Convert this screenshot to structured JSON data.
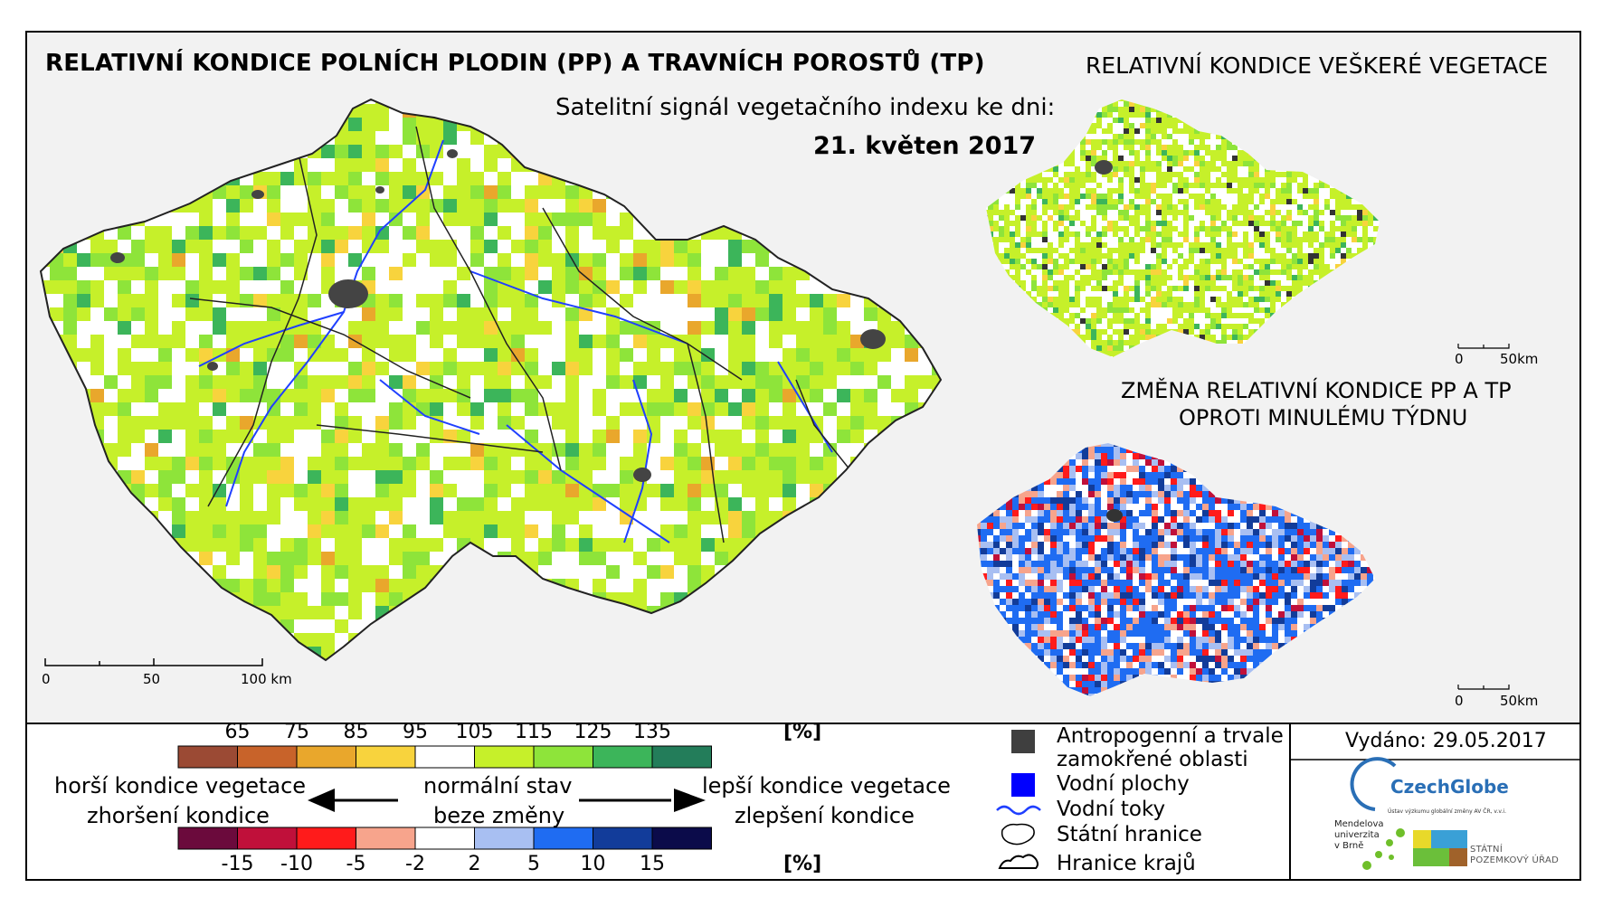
{
  "titles": {
    "main": "RELATIVNÍ KONDICE POLNÍCH PLODIN (PP) A TRAVNÍCH POROSTŮ (TP)",
    "satellite_signal": "Satelitní signál vegetačního indexu ke dni:",
    "date": "21. květen 2017",
    "all_vegetation": "RELATIVNÍ KONDICE VEŠKERÉ VEGETACE",
    "change_line1": "ZMĚNA RELATIVNÍ KONDICE PP A TP",
    "change_line2": "OPROTI MINULÉMU TÝDNU"
  },
  "scalebars": {
    "main": {
      "labels": [
        "0",
        "50",
        "100 km"
      ]
    },
    "small_top": {
      "labels": [
        "0",
        "50km"
      ]
    },
    "small_bottom": {
      "labels": [
        "0",
        "50km"
      ]
    }
  },
  "condition_legend": {
    "unit": "[%]",
    "ticks": [
      "65",
      "75",
      "85",
      "95",
      "105",
      "115",
      "125",
      "135"
    ],
    "colors": [
      "#9b4a34",
      "#c8632a",
      "#e9a72c",
      "#f8d33d",
      "#ffffff",
      "#c6f02a",
      "#8ee43a",
      "#3cb55a",
      "#237d5a"
    ]
  },
  "change_legend": {
    "unit": "[%]",
    "ticks": [
      "-15",
      "-10",
      "-5",
      "-2",
      "2",
      "5",
      "10",
      "15"
    ],
    "colors": [
      "#6b0a3c",
      "#c0103a",
      "#ff1b1b",
      "#f7a48c",
      "#ffffff",
      "#a8bff2",
      "#1f6cf2",
      "#123c9a",
      "#0b0b4a"
    ]
  },
  "descriptions": {
    "worse_line1": "horší kondice vegetace",
    "worse_line2": "zhoršení kondice",
    "normal_line1": "normální stav",
    "normal_line2": "beze změny",
    "better_line1": "lepší kondice vegetace",
    "better_line2": "zlepšení kondice"
  },
  "map_legend": {
    "anthropogenic_line1": "Antropogenní a trvale",
    "anthropogenic_line2": "zamokřené oblasti",
    "water_bodies": "Vodní plochy",
    "rivers": "Vodní toky",
    "state_border": "Státní hranice",
    "region_border": "Hranice krajů",
    "colors": {
      "anthropogenic": "#3f3f3f",
      "water": "#0000ff",
      "river": "#1f3fff"
    }
  },
  "issued": "Vydáno: 29.05.2017",
  "logos": {
    "czechglobe": "CzechGlobe",
    "czechglobe_sub": "Ústav výzkumu globální změny AV ČR, v.v.i.",
    "mendel": [
      "Mendelova",
      "univerzita",
      "v Brně"
    ],
    "spu": [
      "STÁTNÍ",
      "POZEMKOVÝ ÚŘAD"
    ]
  }
}
